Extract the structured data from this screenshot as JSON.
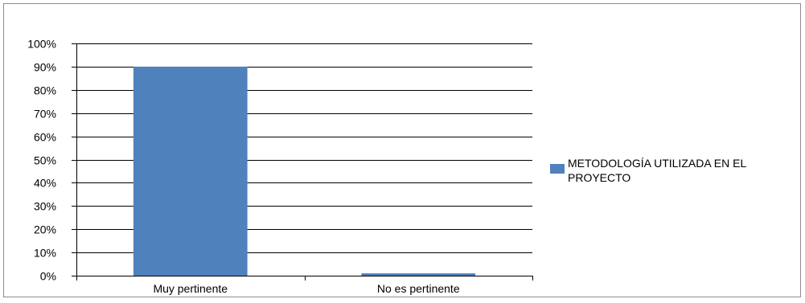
{
  "chart_data": {
    "type": "bar",
    "categories": [
      "Muy pertinente",
      "No es pertinente"
    ],
    "series": [
      {
        "name": "METODOLOGÍA UTILIZADA EN EL PROYECTO",
        "values": [
          90,
          1
        ],
        "color": "#4f81bd"
      }
    ],
    "yticks": [
      "0%",
      "10%",
      "20%",
      "30%",
      "40%",
      "50%",
      "60%",
      "70%",
      "80%",
      "90%",
      "100%"
    ],
    "ylim": [
      0,
      100
    ],
    "grid": true,
    "legend_position": "right",
    "xlabel": "",
    "ylabel": "",
    "title": ""
  }
}
